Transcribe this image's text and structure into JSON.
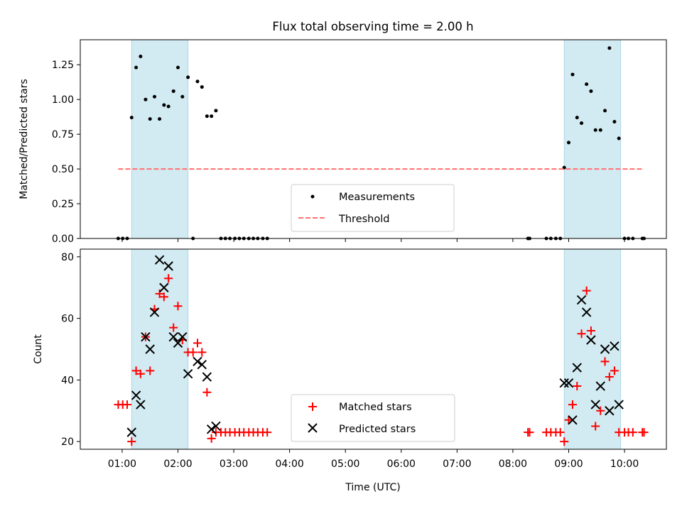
{
  "chart_data": {
    "title": "Flux total observing time = 2.00 h",
    "xlabel": "Time (UTC)",
    "x_unit": "hours UTC",
    "xlim": [
      0.25,
      10.75
    ],
    "x_ticks": [
      1,
      2,
      3,
      4,
      5,
      6,
      7,
      8,
      9,
      10
    ],
    "x_tick_labels": [
      "01:00",
      "02:00",
      "03:00",
      "04:00",
      "05:00",
      "06:00",
      "07:00",
      "08:00",
      "09:00",
      "10:00"
    ],
    "shaded_spans": [
      [
        1.17,
        2.18
      ],
      [
        8.92,
        9.93
      ]
    ],
    "shade_color": "#add8e6",
    "panels": [
      {
        "type": "scatter",
        "ylabel": "Matched/Predicted stars",
        "ylim": [
          0,
          1.43
        ],
        "y_ticks": [
          0,
          0.25,
          0.5,
          0.75,
          1.0,
          1.25
        ],
        "y_tick_labels": [
          "0.00",
          "0.25",
          "0.50",
          "0.75",
          "1.00",
          "1.25"
        ],
        "legend": {
          "position": "bottom-center",
          "entries": [
            "Measurements",
            "Threshold"
          ]
        },
        "series": [
          {
            "name": "Measurements",
            "marker": "dot",
            "color": "#000000",
            "points": [
              [
                0.93,
                0
              ],
              [
                1.01,
                0
              ],
              [
                1.09,
                0
              ],
              [
                1.17,
                0.87
              ],
              [
                1.25,
                1.23
              ],
              [
                1.33,
                1.31
              ],
              [
                1.42,
                1.0
              ],
              [
                1.5,
                0.86
              ],
              [
                1.58,
                1.02
              ],
              [
                1.67,
                0.86
              ],
              [
                1.75,
                0.96
              ],
              [
                1.83,
                0.95
              ],
              [
                1.92,
                1.06
              ],
              [
                2.0,
                1.23
              ],
              [
                2.08,
                1.02
              ],
              [
                2.18,
                1.16
              ],
              [
                2.27,
                0
              ],
              [
                2.35,
                1.13
              ],
              [
                2.43,
                1.09
              ],
              [
                2.52,
                0.88
              ],
              [
                2.6,
                0.88
              ],
              [
                2.68,
                0.92
              ],
              [
                2.77,
                0
              ],
              [
                2.85,
                0
              ],
              [
                2.93,
                0
              ],
              [
                3.02,
                0
              ],
              [
                3.1,
                0
              ],
              [
                3.18,
                0
              ],
              [
                3.27,
                0
              ],
              [
                3.35,
                0
              ],
              [
                3.43,
                0
              ],
              [
                3.52,
                0
              ],
              [
                3.6,
                0
              ],
              [
                8.27,
                0
              ],
              [
                8.3,
                0
              ],
              [
                8.6,
                0
              ],
              [
                8.68,
                0
              ],
              [
                8.77,
                0
              ],
              [
                8.85,
                0
              ],
              [
                8.92,
                0.51
              ],
              [
                9.0,
                0.69
              ],
              [
                9.07,
                1.18
              ],
              [
                9.15,
                0.87
              ],
              [
                9.23,
                0.83
              ],
              [
                9.32,
                1.11
              ],
              [
                9.4,
                1.06
              ],
              [
                9.48,
                0.78
              ],
              [
                9.57,
                0.78
              ],
              [
                9.65,
                0.92
              ],
              [
                9.73,
                1.37
              ],
              [
                9.82,
                0.84
              ],
              [
                9.9,
                0.72
              ],
              [
                10.0,
                0
              ],
              [
                10.07,
                0
              ],
              [
                10.15,
                0
              ],
              [
                10.32,
                0
              ],
              [
                10.35,
                0
              ]
            ]
          },
          {
            "name": "Threshold",
            "type": "line",
            "style": "dashed",
            "color": "#ff7070",
            "x": [
              0.93,
              10.35
            ],
            "y": [
              0.5,
              0.5
            ]
          }
        ]
      },
      {
        "type": "scatter",
        "ylabel": "Count",
        "ylim": [
          17.5,
          82.5
        ],
        "y_ticks": [
          20,
          40,
          60,
          80
        ],
        "y_tick_labels": [
          "20",
          "40",
          "60",
          "80"
        ],
        "legend": {
          "position": "bottom-center",
          "entries": [
            "Matched stars",
            "Predicted stars"
          ]
        },
        "series": [
          {
            "name": "Matched stars",
            "marker": "plus",
            "color": "#ff0000",
            "points": [
              [
                0.93,
                32
              ],
              [
                1.01,
                32
              ],
              [
                1.09,
                32
              ],
              [
                1.17,
                20
              ],
              [
                1.25,
                43
              ],
              [
                1.33,
                42
              ],
              [
                1.42,
                54
              ],
              [
                1.5,
                43
              ],
              [
                1.58,
                63
              ],
              [
                1.67,
                68
              ],
              [
                1.75,
                67
              ],
              [
                1.83,
                73
              ],
              [
                1.92,
                57
              ],
              [
                2.0,
                64
              ],
              [
                2.08,
                53
              ],
              [
                2.18,
                49
              ],
              [
                2.27,
                49
              ],
              [
                2.35,
                52
              ],
              [
                2.43,
                49
              ],
              [
                2.52,
                36
              ],
              [
                2.6,
                21
              ],
              [
                2.68,
                23
              ],
              [
                2.77,
                23
              ],
              [
                2.85,
                23
              ],
              [
                2.93,
                23
              ],
              [
                3.02,
                23
              ],
              [
                3.1,
                23
              ],
              [
                3.18,
                23
              ],
              [
                3.27,
                23
              ],
              [
                3.35,
                23
              ],
              [
                3.43,
                23
              ],
              [
                3.52,
                23
              ],
              [
                3.6,
                23
              ],
              [
                8.27,
                23
              ],
              [
                8.3,
                23
              ],
              [
                8.6,
                23
              ],
              [
                8.68,
                23
              ],
              [
                8.77,
                23
              ],
              [
                8.85,
                23
              ],
              [
                8.92,
                20
              ],
              [
                9.0,
                27
              ],
              [
                9.07,
                32
              ],
              [
                9.15,
                38
              ],
              [
                9.23,
                55
              ],
              [
                9.32,
                69
              ],
              [
                9.4,
                56
              ],
              [
                9.48,
                25
              ],
              [
                9.57,
                30
              ],
              [
                9.65,
                46
              ],
              [
                9.73,
                41
              ],
              [
                9.82,
                43
              ],
              [
                9.9,
                23
              ],
              [
                10.0,
                23
              ],
              [
                10.07,
                23
              ],
              [
                10.15,
                23
              ],
              [
                10.32,
                23
              ],
              [
                10.35,
                23
              ]
            ]
          },
          {
            "name": "Predicted stars",
            "marker": "x",
            "color": "#000000",
            "points": [
              [
                1.17,
                23
              ],
              [
                1.25,
                35
              ],
              [
                1.33,
                32
              ],
              [
                1.42,
                54
              ],
              [
                1.5,
                50
              ],
              [
                1.58,
                62
              ],
              [
                1.67,
                79
              ],
              [
                1.75,
                70
              ],
              [
                1.83,
                77
              ],
              [
                1.92,
                54
              ],
              [
                2.0,
                52
              ],
              [
                2.08,
                54
              ],
              [
                2.18,
                42
              ],
              [
                2.35,
                46
              ],
              [
                2.43,
                45
              ],
              [
                2.52,
                41
              ],
              [
                2.6,
                24
              ],
              [
                2.68,
                25
              ],
              [
                8.92,
                39
              ],
              [
                9.0,
                39
              ],
              [
                9.07,
                27
              ],
              [
                9.15,
                44
              ],
              [
                9.23,
                66
              ],
              [
                9.32,
                62
              ],
              [
                9.4,
                53
              ],
              [
                9.48,
                32
              ],
              [
                9.57,
                38
              ],
              [
                9.65,
                50
              ],
              [
                9.73,
                30
              ],
              [
                9.82,
                51
              ],
              [
                9.9,
                32
              ]
            ]
          }
        ]
      }
    ]
  }
}
